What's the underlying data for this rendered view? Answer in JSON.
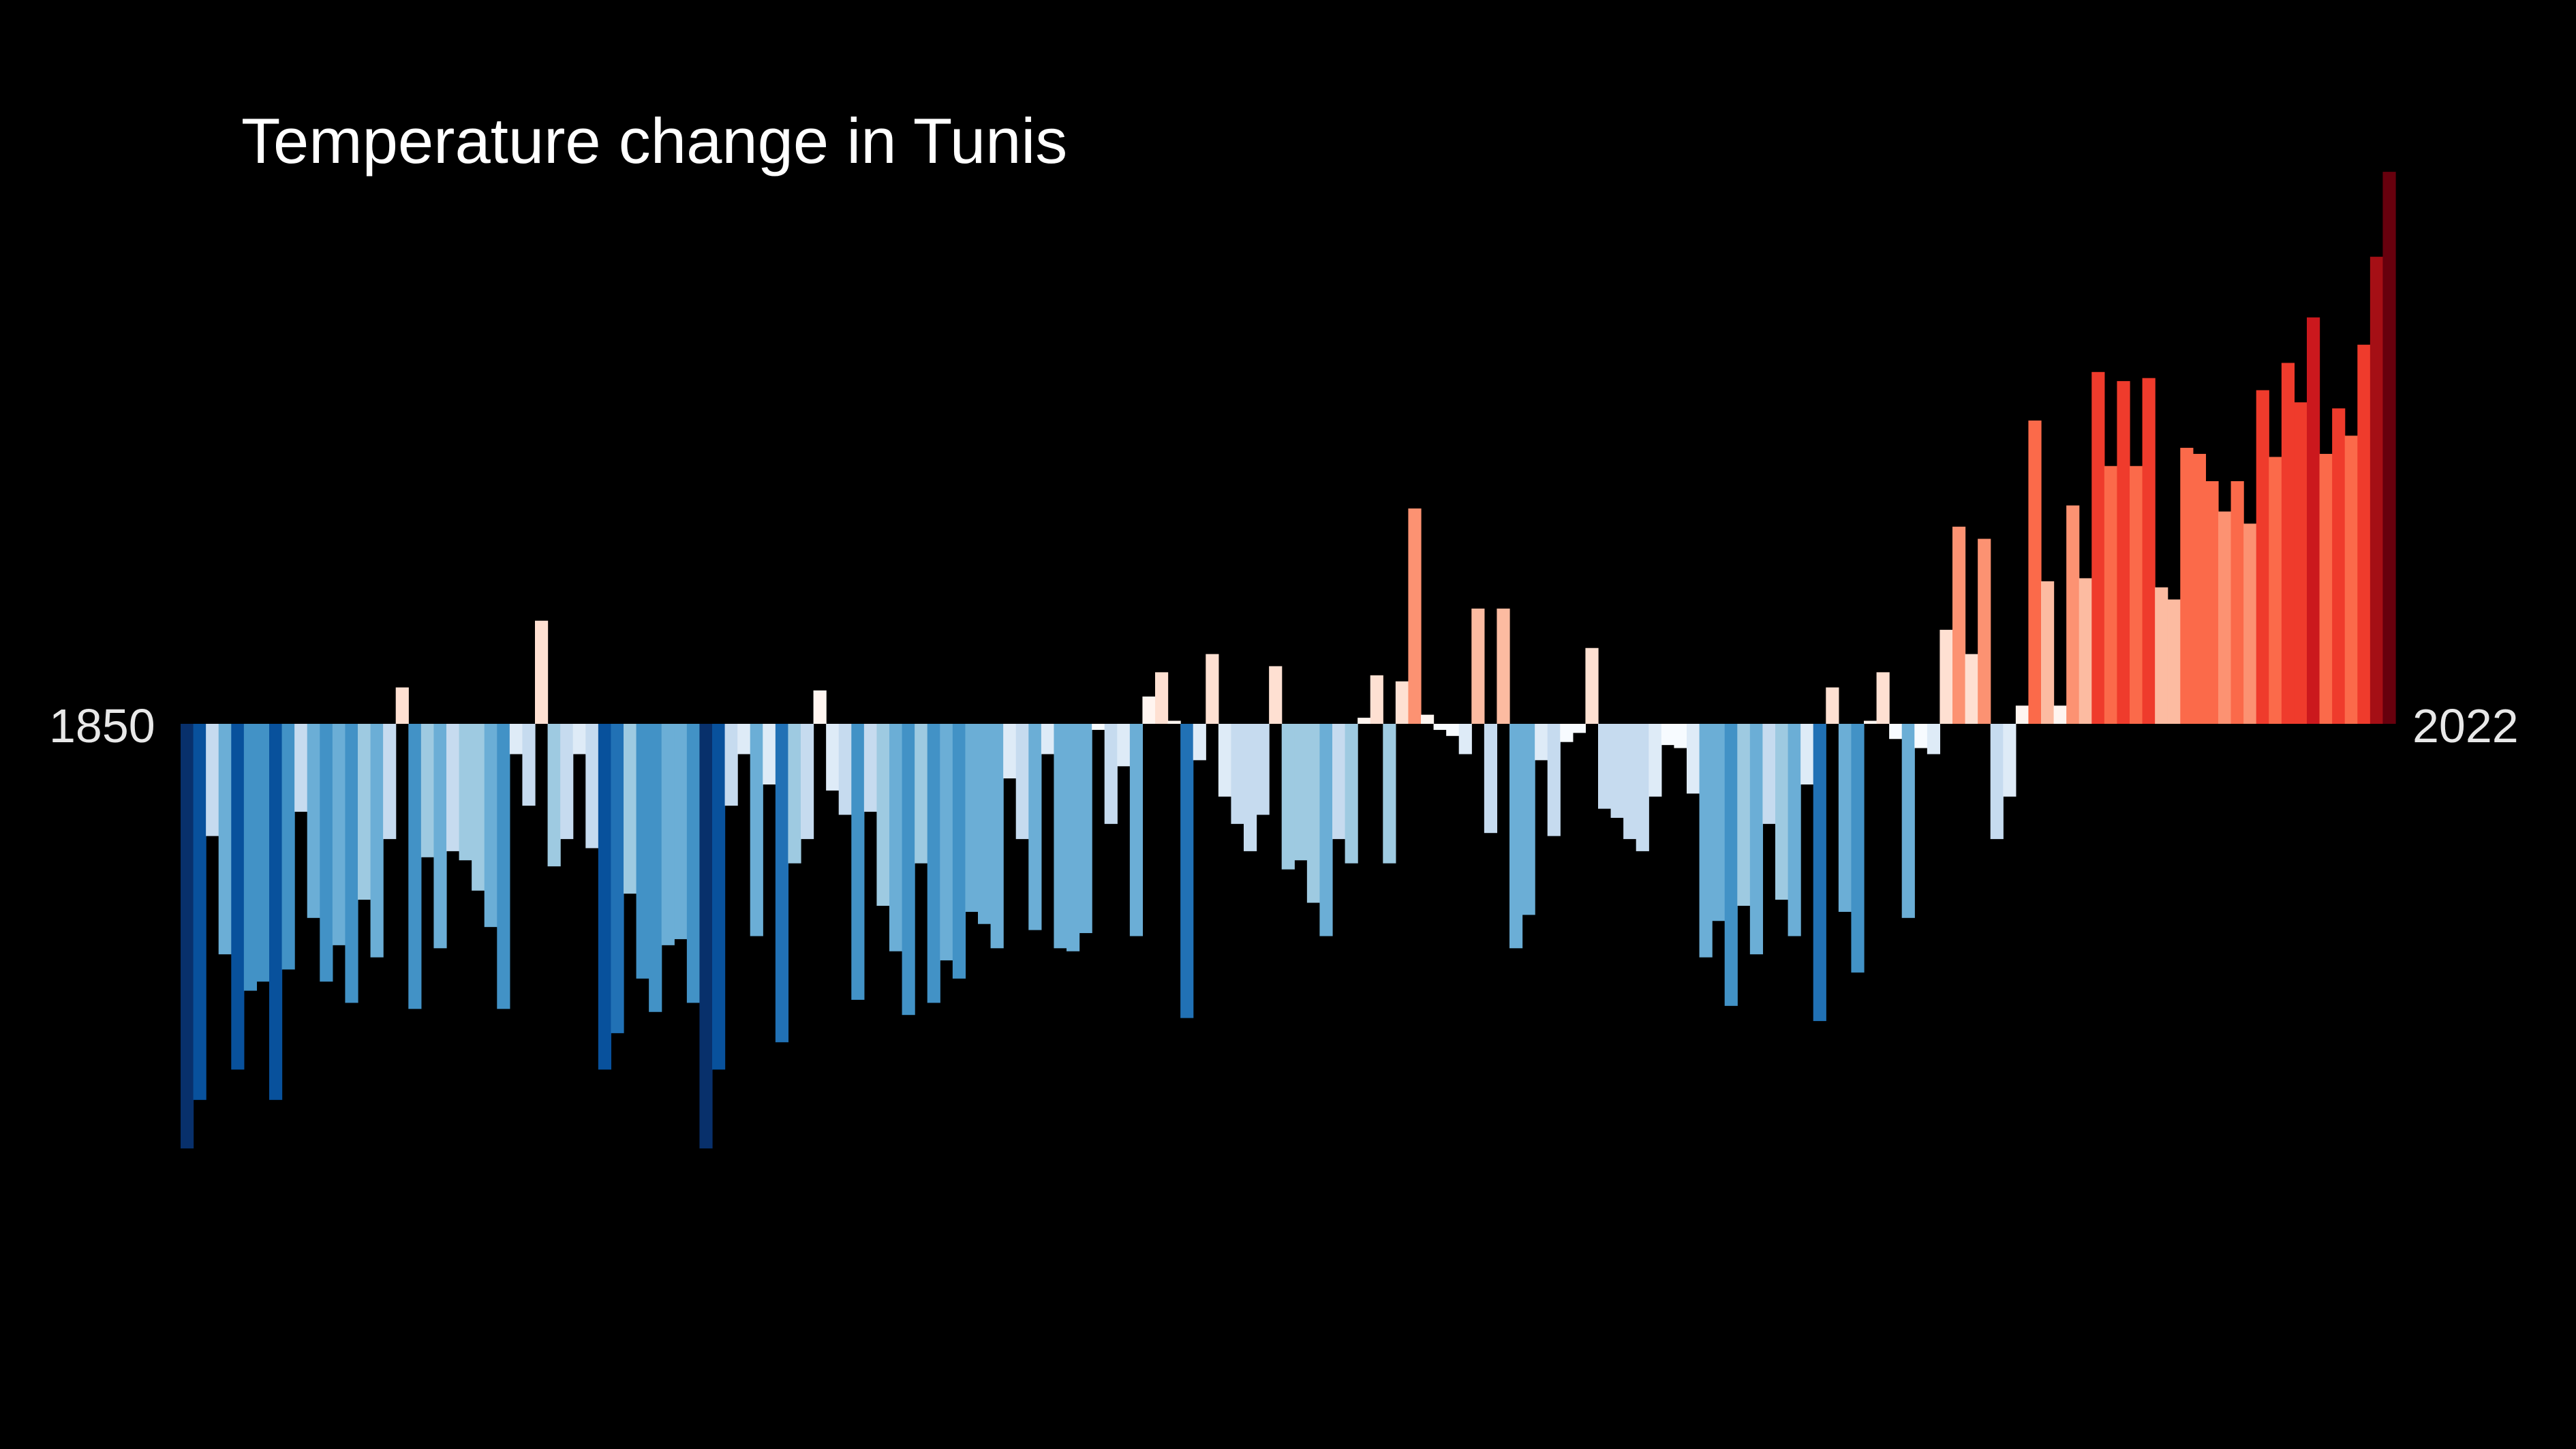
{
  "chart_data": {
    "type": "bar",
    "title": "Temperature change in Tunis",
    "start_year": "1850",
    "end_year": "2022",
    "ylim": [
      -1.4,
      1.82
    ],
    "colors": {
      "background": "#000000",
      "negative_scale": [
        "#f7fbff",
        "#deebf7",
        "#c6dbef",
        "#9ecae1",
        "#6baed6",
        "#4292c6",
        "#2171b5",
        "#08519c",
        "#08306b"
      ],
      "positive_scale": [
        "#fff5f0",
        "#fee0d2",
        "#fcbba1",
        "#fc9272",
        "#fb6a4a",
        "#ef3b2c",
        "#cb181d",
        "#a50f15",
        "#67000d"
      ]
    },
    "values": [
      -1.4,
      -1.24,
      -0.37,
      -0.76,
      -1.14,
      -0.88,
      -0.85,
      -1.24,
      -0.81,
      -0.29,
      -0.64,
      -0.85,
      -0.73,
      -0.92,
      -0.58,
      -0.77,
      -0.38,
      0.12,
      -0.94,
      -0.44,
      -0.74,
      -0.42,
      -0.45,
      -0.55,
      -0.67,
      -0.94,
      -0.1,
      -0.27,
      0.34,
      -0.47,
      -0.38,
      -0.1,
      -0.41,
      -1.14,
      -1.02,
      -0.56,
      -0.84,
      -0.95,
      -0.73,
      -0.71,
      -0.92,
      -1.4,
      -1.14,
      -0.27,
      -0.1,
      -0.7,
      -0.2,
      -1.05,
      -0.46,
      -0.38,
      0.11,
      -0.22,
      -0.3,
      -0.91,
      -0.29,
      -0.6,
      -0.75,
      -0.96,
      -0.46,
      -0.92,
      -0.78,
      -0.84,
      -0.62,
      -0.66,
      -0.74,
      -0.18,
      -0.38,
      -0.68,
      -0.1,
      -0.74,
      -0.75,
      -0.69,
      -0.02,
      -0.33,
      -0.14,
      -0.7,
      0.09,
      0.17,
      0.01,
      -0.97,
      -0.12,
      0.23,
      -0.24,
      -0.33,
      -0.42,
      -0.3,
      0.19,
      -0.48,
      -0.45,
      -0.59,
      -0.7,
      -0.38,
      -0.46,
      0.02,
      0.16,
      -0.46,
      0.14,
      0.71,
      0.03,
      -0.02,
      -0.04,
      -0.1,
      0.38,
      -0.36,
      0.38,
      -0.74,
      -0.63,
      -0.12,
      -0.37,
      -0.06,
      -0.03,
      0.25,
      -0.28,
      -0.31,
      -0.38,
      -0.42,
      -0.24,
      -0.07,
      -0.08,
      -0.23,
      -0.77,
      -0.65,
      -0.93,
      -0.6,
      -0.76,
      -0.33,
      -0.58,
      -0.7,
      -0.2,
      -0.98,
      0.12,
      -0.62,
      -0.82,
      0.01,
      0.17,
      -0.05,
      -0.64,
      -0.08,
      -0.1,
      0.31,
      0.65,
      0.23,
      0.61,
      -0.38,
      -0.24,
      0.06,
      1.0,
      0.47,
      0.06,
      0.72,
      0.48,
      1.16,
      0.85,
      1.13,
      0.85,
      1.14,
      0.45,
      0.41,
      0.91,
      0.89,
      0.8,
      0.7,
      0.8,
      0.66,
      1.1,
      0.88,
      1.19,
      1.06,
      1.34,
      0.89,
      1.04,
      0.95,
      1.25,
      1.54,
      1.82
    ]
  }
}
